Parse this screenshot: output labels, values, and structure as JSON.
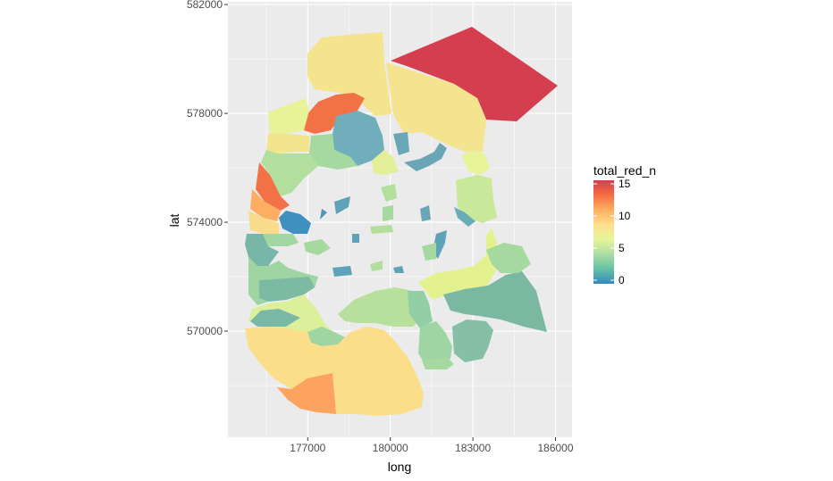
{
  "chart_data": {
    "type": "choropleth",
    "xlabel": "long",
    "ylabel": "lat",
    "xlim": [
      174100,
      186600
    ],
    "ylim": [
      566100,
      582100
    ],
    "x_ticks": [
      177000,
      180000,
      183000,
      186000
    ],
    "y_ticks": [
      570000,
      574000,
      578000,
      582000
    ],
    "x_tick_labels": [
      "177000",
      "180000",
      "183000",
      "186000"
    ],
    "y_tick_labels": [
      "570000",
      "574000",
      "578000",
      "582000"
    ],
    "grid": true,
    "legend": {
      "title": "total_red_n",
      "position": "right",
      "range": [
        0,
        15
      ],
      "ticks": [
        0,
        5,
        10,
        15
      ],
      "tick_labels": [
        "0",
        "5",
        "10",
        "15"
      ],
      "palette": [
        "#3288bd",
        "#66c2a5",
        "#abdda4",
        "#e6f598",
        "#fee08b",
        "#fdae61",
        "#f46d43",
        "#d53e4f"
      ]
    },
    "regions": [
      {
        "id": "ne-large",
        "value": 15,
        "approx_centroid": [
          184200,
          579700
        ]
      },
      {
        "id": "north-central",
        "value": 6,
        "approx_centroid": [
          181500,
          578300
        ]
      },
      {
        "id": "north-top",
        "value": 6,
        "approx_centroid": [
          178700,
          580000
        ]
      },
      {
        "id": "nw-orange",
        "value": 12,
        "approx_centroid": [
          177100,
          577900
        ]
      },
      {
        "id": "north-blue-green",
        "value": 3,
        "approx_centroid": [
          178700,
          577000
        ]
      },
      {
        "id": "nw-pale",
        "value": 5,
        "approx_centroid": [
          176500,
          577600
        ]
      },
      {
        "id": "west-orange",
        "value": 12,
        "approx_centroid": [
          175600,
          575700
        ]
      },
      {
        "id": "west-light-orange",
        "value": 9,
        "approx_centroid": [
          175600,
          574700
        ]
      },
      {
        "id": "west-blue",
        "value": 1,
        "approx_centroid": [
          176700,
          574100
        ]
      },
      {
        "id": "west-green",
        "value": 4,
        "approx_centroid": [
          176200,
          573000
        ]
      },
      {
        "id": "sw-yellow-large",
        "value": 7,
        "approx_centroid": [
          178000,
          568600
        ]
      },
      {
        "id": "sw-orange",
        "value": 10,
        "approx_centroid": [
          177400,
          567400
        ]
      },
      {
        "id": "east-teal-large",
        "value": 3,
        "approx_centroid": [
          184600,
          571200
        ]
      },
      {
        "id": "east-pale-strip",
        "value": 6,
        "approx_centroid": [
          183000,
          572700
        ]
      },
      {
        "id": "east-green",
        "value": 4,
        "approx_centroid": [
          183300,
          575300
        ]
      },
      {
        "id": "southeast-green",
        "value": 4,
        "approx_centroid": [
          182800,
          569600
        ]
      },
      {
        "id": "central-south-green",
        "value": 4,
        "approx_centroid": [
          179800,
          571100
        ]
      }
    ]
  }
}
